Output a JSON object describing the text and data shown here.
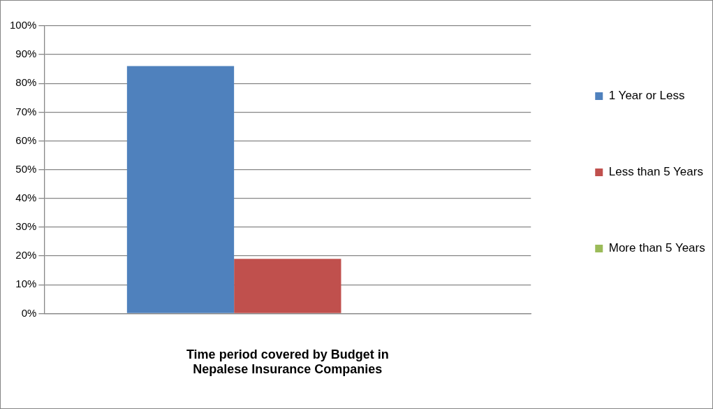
{
  "chart_data": {
    "type": "bar",
    "xlabel": "Time period covered by Budget in Nepalese Insurance Companies",
    "categories": [
      null
    ],
    "series": [
      {
        "name": "1 Year or Less",
        "color": "#4f81bd",
        "values": [
          86
        ]
      },
      {
        "name": "Less than 5 Years",
        "color": "#c0504d",
        "values": [
          19
        ]
      },
      {
        "name": "More than 5 Years",
        "color": "#9bbb59",
        "values": [
          0
        ]
      }
    ],
    "ylim": [
      0,
      100
    ],
    "yticks": [
      {
        "value": 0,
        "label": "0%"
      },
      {
        "value": 10,
        "label": "10%"
      },
      {
        "value": 20,
        "label": "20%"
      },
      {
        "value": 30,
        "label": "30%"
      },
      {
        "value": 40,
        "label": "40%"
      },
      {
        "value": 50,
        "label": "50%"
      },
      {
        "value": 60,
        "label": "60%"
      },
      {
        "value": 70,
        "label": "70%"
      },
      {
        "value": 80,
        "label": "80%"
      },
      {
        "value": 90,
        "label": "90%"
      },
      {
        "value": 100,
        "label": "100%"
      }
    ],
    "grid": "y",
    "legend": "right"
  }
}
